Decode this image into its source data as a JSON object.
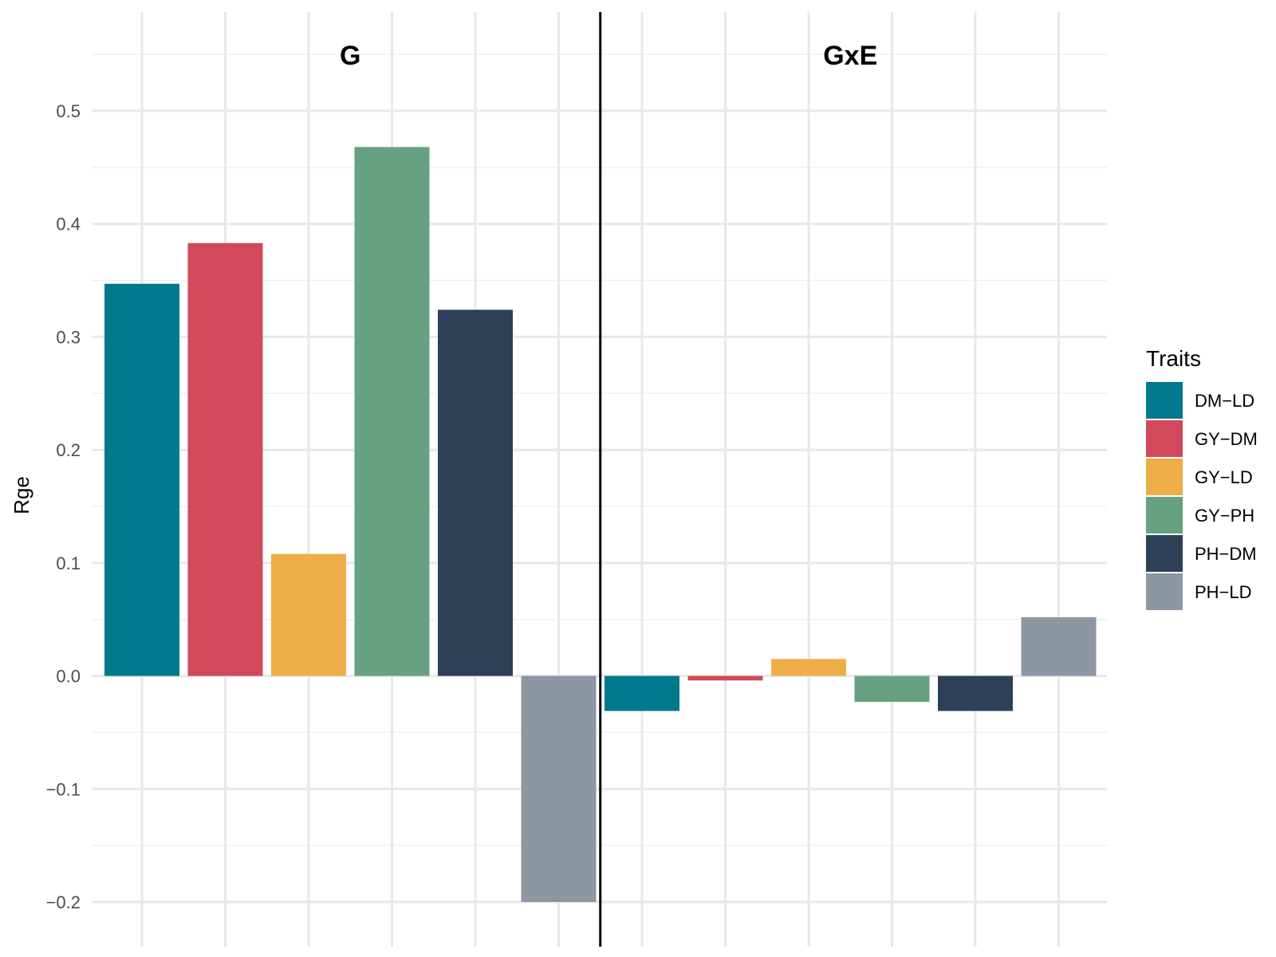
{
  "chart_data": {
    "type": "bar",
    "title": "",
    "xlabel": "",
    "ylabel": "Rge",
    "ylim": [
      -0.2,
      0.5
    ],
    "yticks": [
      "0.5",
      "0.4",
      "0.3",
      "0.2",
      "0.1",
      "0.0",
      "−0.1",
      "−0.2"
    ],
    "ytick_values": [
      0.5,
      0.4,
      0.3,
      0.2,
      0.1,
      0.0,
      -0.1,
      -0.2
    ],
    "grid": true,
    "legend_title": "Traits",
    "legend_position": "right",
    "categories": [
      "DM−LD",
      "GY−DM",
      "GY−LD",
      "GY−PH",
      "PH−DM",
      "PH−LD"
    ],
    "colors": [
      "#00798c",
      "#d1495b",
      "#edae49",
      "#66a182",
      "#2e4057",
      "#8d96a3"
    ],
    "panels": [
      {
        "name": "G",
        "values": [
          0.347,
          0.383,
          0.108,
          0.468,
          0.324,
          -0.2
        ]
      },
      {
        "name": "GxE",
        "values": [
          -0.031,
          -0.004,
          0.015,
          -0.023,
          -0.031,
          0.052
        ]
      }
    ]
  }
}
